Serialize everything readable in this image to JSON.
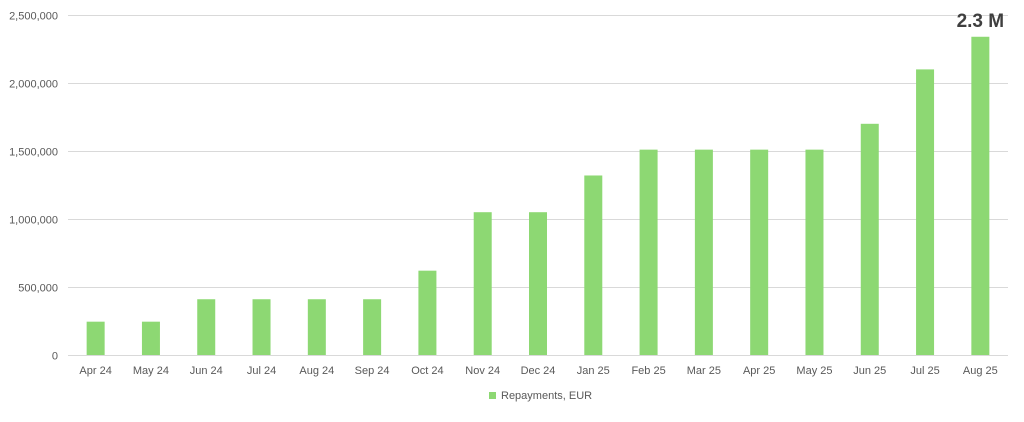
{
  "chart_data": {
    "type": "bar",
    "categories": [
      "Apr 24",
      "May 24",
      "Jun 24",
      "Jul 24",
      "Aug 24",
      "Sep 24",
      "Oct 24",
      "Nov 24",
      "Dec 24",
      "Jan 25",
      "Feb 25",
      "Mar 25",
      "Apr 25",
      "May 25",
      "Jun 25",
      "Jul 25",
      "Aug 25"
    ],
    "series": [
      {
        "name": "Repayments, EUR",
        "color": "#8dd873",
        "values": [
          245000,
          245000,
          410000,
          410000,
          410000,
          410000,
          620000,
          1050000,
          1050000,
          1320000,
          1510000,
          1510000,
          1510000,
          1510000,
          1700000,
          2100000,
          2340000
        ]
      }
    ],
    "title": "",
    "xlabel": "",
    "ylabel": "",
    "ylim": [
      0,
      2500000
    ],
    "yticks": [
      0,
      500000,
      1000000,
      1500000,
      2000000,
      2500000
    ],
    "ytick_labels": [
      "0",
      "500,000",
      "1,000,000",
      "1,500,000",
      "2,000,000",
      "2,500,000"
    ],
    "grid": true,
    "legend_position": "bottom",
    "annotations": [
      {
        "text": "2.3 M",
        "category": "Aug 25"
      }
    ]
  }
}
